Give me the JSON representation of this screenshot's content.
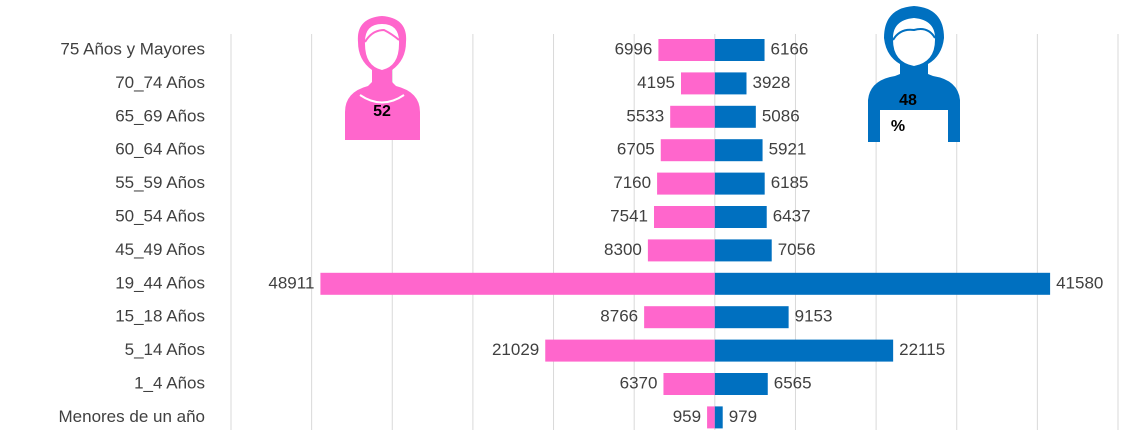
{
  "chart_data": {
    "type": "population-pyramid",
    "categories": [
      "75 Años y Mayores",
      "70_74 Años",
      "65_69 Años",
      "60_64 Años",
      "55_59 Años",
      "50_54 Años",
      "45_49 Años",
      "19_44 Años",
      "15_18 Años",
      "5_14 Años",
      "1_4 Años",
      "Menores de un año"
    ],
    "series": [
      {
        "name": "Mujeres",
        "color": "#ff66cc",
        "side": "left",
        "values": [
          6996,
          4195,
          5533,
          6705,
          7160,
          7541,
          8300,
          48911,
          8766,
          21029,
          6370,
          959
        ]
      },
      {
        "name": "Hombres",
        "color": "#0070c0",
        "side": "right",
        "values": [
          6166,
          3928,
          5086,
          5921,
          6185,
          6437,
          7056,
          41580,
          9153,
          22115,
          6565,
          979
        ]
      }
    ],
    "xlim": [
      -60000,
      50000
    ],
    "xticks": [
      -60000,
      -50000,
      -40000,
      -30000,
      -20000,
      -10000,
      0,
      10000,
      20000,
      30000,
      40000,
      50000
    ],
    "grid": true,
    "annotations": {
      "female_percent": "52",
      "male_percent": [
        "48",
        "%"
      ]
    }
  }
}
